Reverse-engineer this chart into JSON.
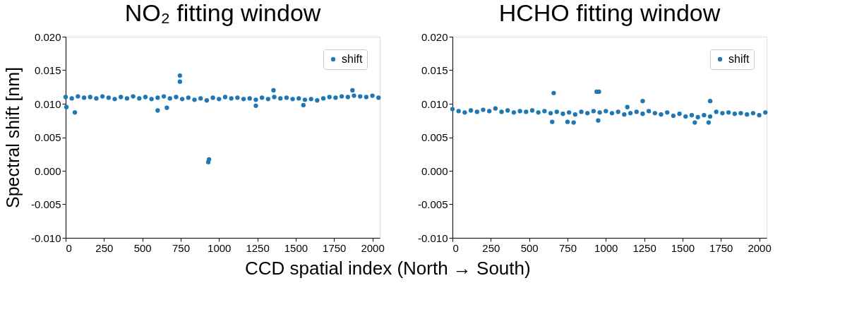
{
  "chart_data": [
    {
      "type": "scatter",
      "title": "NO₂ fitting window",
      "ylabel": "Spectral shift [nm]",
      "xlabel": "CCD spatial index (North → South)",
      "xlim": [
        0,
        2048
      ],
      "xticks": [
        0,
        250,
        500,
        750,
        1000,
        1250,
        1500,
        1750,
        2000
      ],
      "ylim": [
        -0.01,
        0.02
      ],
      "yticks": [
        {
          "value": -0.01,
          "label": "-0.010"
        },
        {
          "value": -0.005,
          "label": "-0.005"
        },
        {
          "value": 0,
          "label": "0.000"
        },
        {
          "value": 0.005,
          "label": "0.005"
        },
        {
          "value": 0.01,
          "label": "0.010"
        },
        {
          "value": 0.015,
          "label": "0.015"
        },
        {
          "value": 0.02,
          "label": "0.020"
        }
      ],
      "grid": false,
      "legend": "top right",
      "marker": "circle",
      "series": [
        {
          "name": "shift",
          "color": "#1f77b4",
          "x": [
            0,
            40,
            80,
            120,
            160,
            200,
            240,
            280,
            320,
            360,
            400,
            440,
            480,
            520,
            560,
            600,
            640,
            680,
            720,
            760,
            800,
            840,
            880,
            920,
            960,
            1000,
            1040,
            1080,
            1120,
            1160,
            1200,
            1240,
            1280,
            1320,
            1360,
            1400,
            1440,
            1480,
            1520,
            1560,
            1600,
            1640,
            1680,
            1720,
            1760,
            1800,
            1840,
            1880,
            1920,
            1960,
            2000,
            2040,
            5,
            60,
            600,
            660,
            745,
            745,
            930,
            935,
            1240,
            1355,
            1550,
            1870
          ],
          "values": [
            0.011,
            0.0108,
            0.0111,
            0.0109,
            0.011,
            0.0108,
            0.0111,
            0.0109,
            0.0107,
            0.011,
            0.0108,
            0.0111,
            0.0108,
            0.011,
            0.0107,
            0.0109,
            0.0111,
            0.0108,
            0.011,
            0.0107,
            0.0109,
            0.0106,
            0.0108,
            0.0105,
            0.0109,
            0.0107,
            0.011,
            0.0108,
            0.0109,
            0.0107,
            0.0108,
            0.0106,
            0.0109,
            0.0107,
            0.011,
            0.0108,
            0.0109,
            0.0107,
            0.0108,
            0.0106,
            0.0107,
            0.0105,
            0.0108,
            0.011,
            0.0109,
            0.0111,
            0.011,
            0.0112,
            0.0111,
            0.011,
            0.0112,
            0.0109,
            0.0095,
            0.0087,
            0.009,
            0.0094,
            0.0142,
            0.0133,
            0.0013,
            0.0017,
            0.0097,
            0.012,
            0.0098,
            0.012
          ]
        }
      ]
    },
    {
      "type": "scatter",
      "title": "HCHO fitting window",
      "xlim": [
        0,
        2048
      ],
      "xticks": [
        0,
        250,
        500,
        750,
        1000,
        1250,
        1500,
        1750,
        2000
      ],
      "ylim": [
        -0.01,
        0.02
      ],
      "yticks": [
        {
          "value": -0.01,
          "label": "-0.010"
        },
        {
          "value": -0.005,
          "label": "-0.005"
        },
        {
          "value": 0,
          "label": "0.000"
        },
        {
          "value": 0.005,
          "label": "0.005"
        },
        {
          "value": 0.01,
          "label": "0.010"
        },
        {
          "value": 0.015,
          "label": "0.015"
        },
        {
          "value": 0.02,
          "label": "0.020"
        }
      ],
      "grid": false,
      "legend": "top right",
      "marker": "circle",
      "series": [
        {
          "name": "shift",
          "color": "#1f77b4",
          "x": [
            0,
            40,
            80,
            120,
            160,
            200,
            240,
            280,
            320,
            360,
            400,
            440,
            480,
            520,
            560,
            600,
            640,
            680,
            720,
            760,
            800,
            840,
            880,
            920,
            960,
            1000,
            1040,
            1080,
            1120,
            1160,
            1200,
            1240,
            1280,
            1320,
            1360,
            1400,
            1440,
            1480,
            1520,
            1560,
            1600,
            1640,
            1680,
            1720,
            1760,
            1800,
            1840,
            1880,
            1920,
            1960,
            2000,
            2040,
            660,
            940,
            955,
            1240,
            1680,
            1140,
            650,
            750,
            790,
            950,
            1580,
            1670
          ],
          "values": [
            0.0092,
            0.0089,
            0.0087,
            0.009,
            0.0088,
            0.0091,
            0.0089,
            0.0093,
            0.0088,
            0.009,
            0.0087,
            0.0089,
            0.0088,
            0.009,
            0.0087,
            0.0089,
            0.0086,
            0.0088,
            0.0085,
            0.0087,
            0.0084,
            0.0088,
            0.0086,
            0.0089,
            0.0087,
            0.0089,
            0.0086,
            0.0088,
            0.0084,
            0.0086,
            0.0088,
            0.0085,
            0.0089,
            0.0086,
            0.0084,
            0.0087,
            0.0082,
            0.0085,
            0.0081,
            0.0083,
            0.008,
            0.0083,
            0.0081,
            0.0088,
            0.0086,
            0.0087,
            0.0085,
            0.0086,
            0.0084,
            0.0086,
            0.0083,
            0.0087,
            0.0116,
            0.0118,
            0.0118,
            0.0104,
            0.0104,
            0.0095,
            0.0073,
            0.0073,
            0.0072,
            0.0075,
            0.0072,
            0.0072
          ]
        }
      ]
    }
  ]
}
